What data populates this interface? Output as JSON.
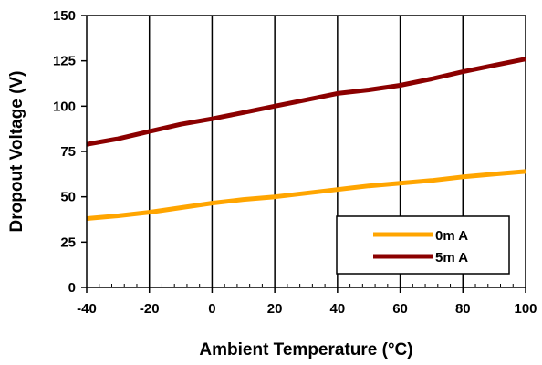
{
  "chart_data": {
    "type": "line",
    "title": "",
    "xlabel": "Ambient Temperature (°C)",
    "ylabel": "Dropout Voltage (V)",
    "xlim": [
      -40,
      100
    ],
    "ylim": [
      0,
      150
    ],
    "x_ticks": [
      -40,
      -20,
      0,
      20,
      40,
      60,
      80,
      100
    ],
    "y_ticks": [
      0,
      25,
      50,
      75,
      100,
      125,
      150
    ],
    "x_tick_labels": [
      "-40",
      "-20",
      "0",
      "20",
      "40",
      "60",
      "80",
      "100"
    ],
    "y_tick_labels": [
      "0",
      "25",
      "50",
      "75",
      "100",
      "125",
      "150"
    ],
    "grid": "vertical",
    "legend_position": "bottom-right",
    "series": [
      {
        "name": "0m A",
        "color": "#FFA500",
        "x": [
          -40,
          -30,
          -20,
          -10,
          0,
          10,
          20,
          30,
          40,
          50,
          60,
          70,
          80,
          90,
          100
        ],
        "y": [
          38,
          39.5,
          41.5,
          44,
          46.5,
          48.5,
          50,
          52,
          54,
          56,
          57.5,
          59,
          61,
          62.5,
          64
        ]
      },
      {
        "name": "5m A",
        "color": "#8B0000",
        "x": [
          -40,
          -30,
          -20,
          -10,
          0,
          10,
          20,
          30,
          40,
          50,
          60,
          70,
          80,
          90,
          100
        ],
        "y": [
          79,
          82,
          86,
          90,
          93,
          96.5,
          100,
          103.5,
          107,
          109,
          111.5,
          115,
          119,
          122.5,
          126
        ]
      }
    ]
  }
}
